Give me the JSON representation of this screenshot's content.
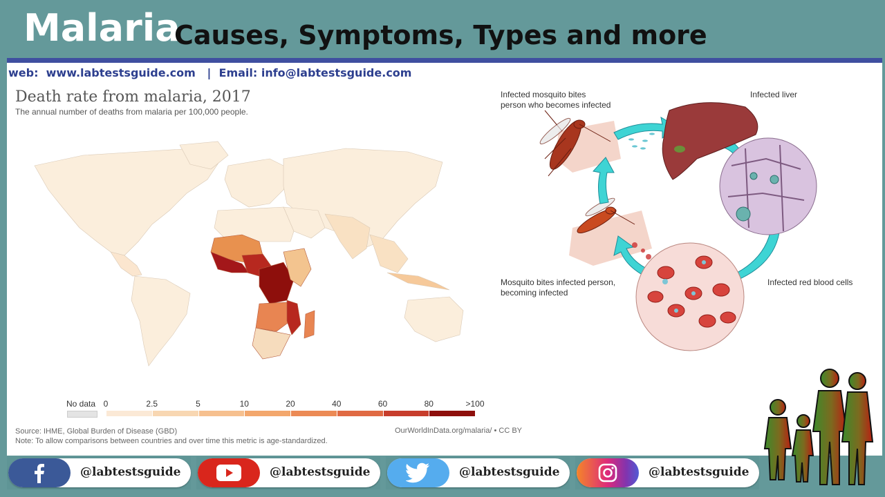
{
  "header": {
    "title_main": "Malaria",
    "title_sub": "Causes, Symptoms, Types and more",
    "contact": "web:  www.labtestsguide.com   |  Email: info@labtestsguide.com"
  },
  "chart": {
    "title": "Death rate from malaria, 2017",
    "subtitle": "The annual number of deaths from malaria per 100,000 people.",
    "source": "Source: IHME, Global Burden of Disease (GBD)",
    "note": "Note: To allow comparisons between countries and over time this metric is age-standardized.",
    "credit": "OurWorldInData.org/malaria/ • CC BY"
  },
  "chart_data": {
    "type": "other",
    "title": "Death rate from malaria, 2017",
    "legend": {
      "no_data_label": "No data",
      "breaks": [
        "0",
        "2.5",
        "5",
        "10",
        "20",
        "40",
        "60",
        "80",
        ">100"
      ],
      "colors": [
        "#fbe9d6",
        "#f8d7b2",
        "#f6c08f",
        "#f3a76d",
        "#ec8a55",
        "#e06a43",
        "#c73d2c",
        "#8e0f0c"
      ]
    }
  },
  "lifecycle": {
    "labels": {
      "bite_healthy": "Infected mosquito bites\nperson who becomes infected",
      "liver": "Infected liver",
      "bite_infected": "Mosquito bites infected person,\nbecoming infected",
      "rbc": "Infected red blood cells"
    }
  },
  "social": [
    {
      "platform": "facebook",
      "icon": "facebook-icon",
      "handle": "@labtestsguide",
      "color": "#3b5998"
    },
    {
      "platform": "youtube",
      "icon": "youtube-icon",
      "handle": "@labtestsguide",
      "color": "#d9261c"
    },
    {
      "platform": "twitter",
      "icon": "twitter-icon",
      "handle": "@labtestsguide",
      "color": "#55acee"
    },
    {
      "platform": "instagram",
      "icon": "instagram-icon",
      "handle": "@labtestsguide",
      "color": "#c13584"
    }
  ],
  "colors": {
    "frame": "#64999a",
    "rule": "#3f4fa0",
    "contact_text": "#2d3f8f"
  }
}
